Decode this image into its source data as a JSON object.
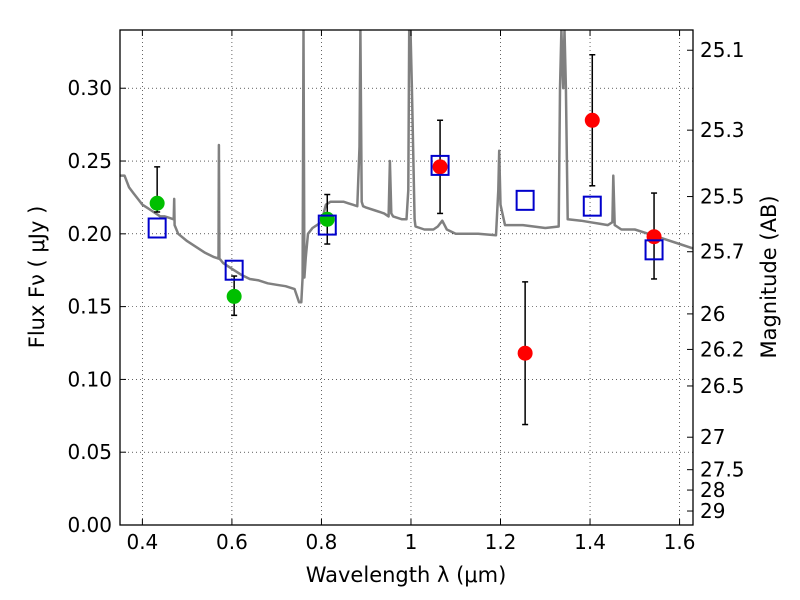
{
  "chart_data": {
    "type": "scatter",
    "xlabel": "Wavelength  λ (μm)",
    "ylabel": "Flux  Fν  ( μJy )",
    "y2label": "Magnitude (AB)",
    "xlim": [
      0.35,
      1.63
    ],
    "ylim": [
      0.0,
      0.34
    ],
    "grid": true,
    "x_ticks": [
      {
        "value": 0.4,
        "label": "0.4"
      },
      {
        "value": 0.6,
        "label": "0.6"
      },
      {
        "value": 0.8,
        "label": "0.8"
      },
      {
        "value": 1.0,
        "label": "1"
      },
      {
        "value": 1.2,
        "label": "1.2"
      },
      {
        "value": 1.4,
        "label": "1.4"
      },
      {
        "value": 1.6,
        "label": "1.6"
      }
    ],
    "y_ticks": [
      {
        "value": 0.0,
        "label": "0.00"
      },
      {
        "value": 0.05,
        "label": "0.05"
      },
      {
        "value": 0.1,
        "label": "0.10"
      },
      {
        "value": 0.15,
        "label": "0.15"
      },
      {
        "value": 0.2,
        "label": "0.20"
      },
      {
        "value": 0.25,
        "label": "0.25"
      },
      {
        "value": 0.3,
        "label": "0.30"
      }
    ],
    "y2_ticks": [
      {
        "flux": 0.3261,
        "label": "25.1"
      },
      {
        "flux": 0.2712,
        "label": "25.3"
      },
      {
        "flux": 0.2256,
        "label": "25.5"
      },
      {
        "flux": 0.1877,
        "label": "25.7"
      },
      {
        "flux": 0.145,
        "label": "26"
      },
      {
        "flux": 0.1206,
        "label": "26.2"
      },
      {
        "flux": 0.0955,
        "label": "26.5"
      },
      {
        "flux": 0.0603,
        "label": "27"
      },
      {
        "flux": 0.038,
        "label": "27.5"
      },
      {
        "flux": 0.024,
        "label": "28"
      },
      {
        "flux": 0.0096,
        "label": "29"
      }
    ],
    "series": [
      {
        "name": "model spectrum",
        "kind": "line",
        "color": "#808080",
        "x": [
          0.35,
          0.36,
          0.37,
          0.38,
          0.39,
          0.4,
          0.41,
          0.42,
          0.43,
          0.44,
          0.45,
          0.46,
          0.47,
          0.471,
          0.472,
          0.48,
          0.5,
          0.52,
          0.54,
          0.56,
          0.57,
          0.571,
          0.572,
          0.575,
          0.58,
          0.6,
          0.62,
          0.64,
          0.66,
          0.68,
          0.7,
          0.72,
          0.74,
          0.75,
          0.755,
          0.758,
          0.76,
          0.762,
          0.765,
          0.77,
          0.78,
          0.79,
          0.8,
          0.81,
          0.82,
          0.83,
          0.84,
          0.85,
          0.86,
          0.87,
          0.88,
          0.885,
          0.887,
          0.89,
          0.893,
          0.9,
          0.92,
          0.94,
          0.95,
          0.953,
          0.956,
          0.96,
          0.98,
          0.99,
          0.994,
          0.996,
          0.999,
          1.002,
          1.008,
          1.01,
          1.03,
          1.05,
          1.06,
          1.07,
          1.08,
          1.1,
          1.15,
          1.19,
          1.195,
          1.197,
          1.2,
          1.21,
          1.25,
          1.3,
          1.33,
          1.333,
          1.336,
          1.34,
          1.343,
          1.346,
          1.35,
          1.38,
          1.4,
          1.42,
          1.44,
          1.45,
          1.452,
          1.455,
          1.46,
          1.47,
          1.5,
          1.55,
          1.6,
          1.63
        ],
        "y": [
          0.24,
          0.24,
          0.232,
          0.228,
          0.224,
          0.22,
          0.218,
          0.216,
          0.214,
          0.212,
          0.212,
          0.211,
          0.21,
          0.224,
          0.206,
          0.2,
          0.195,
          0.191,
          0.187,
          0.184,
          0.183,
          0.261,
          0.183,
          0.182,
          0.18,
          0.176,
          0.172,
          0.169,
          0.168,
          0.166,
          0.165,
          0.164,
          0.162,
          0.153,
          0.153,
          0.17,
          0.34,
          0.17,
          0.184,
          0.2,
          0.204,
          0.206,
          0.208,
          0.22,
          0.222,
          0.222,
          0.222,
          0.222,
          0.221,
          0.22,
          0.219,
          0.26,
          0.34,
          0.222,
          0.219,
          0.218,
          0.216,
          0.214,
          0.212,
          0.25,
          0.214,
          0.212,
          0.21,
          0.21,
          0.23,
          0.34,
          0.34,
          0.3,
          0.21,
          0.205,
          0.203,
          0.203,
          0.205,
          0.209,
          0.203,
          0.2,
          0.2,
          0.199,
          0.23,
          0.257,
          0.22,
          0.206,
          0.206,
          0.204,
          0.205,
          0.3,
          0.34,
          0.3,
          0.34,
          0.3,
          0.21,
          0.209,
          0.208,
          0.207,
          0.206,
          0.208,
          0.24,
          0.206,
          0.205,
          0.203,
          0.203,
          0.198,
          0.193,
          0.19
        ]
      },
      {
        "name": "green photometry",
        "kind": "scatter",
        "marker": "circle",
        "color": "#00bf00",
        "x": [
          0.433,
          0.605,
          0.813
        ],
        "y": [
          0.221,
          0.157,
          0.21
        ],
        "err_low": [
          0.006,
          0.013,
          0.017
        ],
        "err_high": [
          0.025,
          0.014,
          0.017
        ]
      },
      {
        "name": "red photometry",
        "kind": "scatter",
        "marker": "circle",
        "color": "#ff0000",
        "x": [
          1.065,
          1.255,
          1.405,
          1.543
        ],
        "y": [
          0.246,
          0.118,
          0.278,
          0.198
        ],
        "err_low": [
          0.032,
          0.049,
          0.045,
          0.029
        ],
        "err_high": [
          0.032,
          0.049,
          0.045,
          0.03
        ]
      },
      {
        "name": "model magnitudes",
        "kind": "scatter",
        "marker": "open-square",
        "color": "#0000cc",
        "x": [
          0.433,
          0.605,
          0.813,
          1.065,
          1.255,
          1.405,
          1.543
        ],
        "y": [
          0.204,
          0.175,
          0.206,
          0.247,
          0.223,
          0.219,
          0.189
        ]
      }
    ]
  }
}
